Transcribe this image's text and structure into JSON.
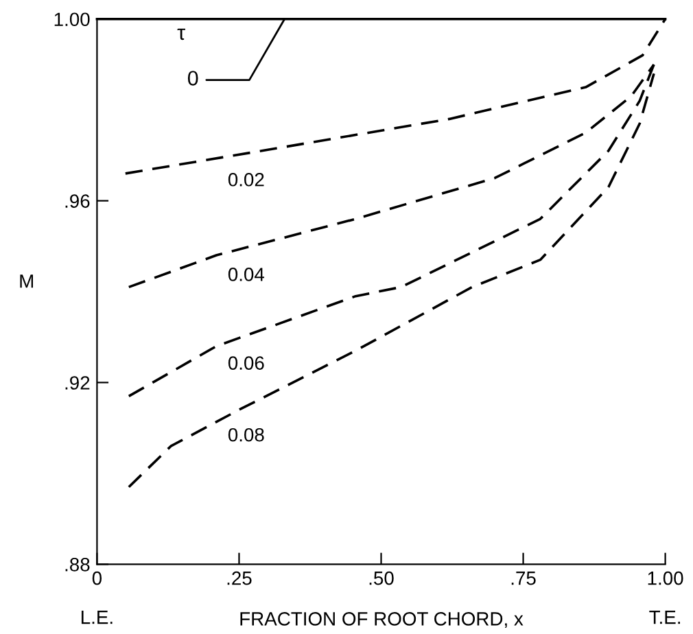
{
  "chart_data": {
    "type": "line",
    "xlabel": "FRACTION OF ROOT CHORD, x",
    "ylabel": "M",
    "legend_title": "τ",
    "xlim": [
      0,
      1.0
    ],
    "ylim": [
      0.88,
      1.0
    ],
    "xticks": [
      0,
      {
        "value": 0.25,
        "label": ".25"
      },
      {
        "value": 0.5,
        "label": ".50"
      },
      {
        "value": 0.75,
        "label": ".75"
      },
      {
        "value": 1.0,
        "label": "1.00"
      }
    ],
    "yticks": [
      {
        "value": 0.88,
        "label": ".88"
      },
      {
        "value": 0.92,
        "label": ".92"
      },
      {
        "value": 0.96,
        "label": ".96"
      },
      {
        "value": 1.0,
        "label": "1.00"
      }
    ],
    "grid": false,
    "legend": false,
    "marker": "none",
    "annotations": [
      "L.E.",
      "T.E."
    ],
    "series": [
      {
        "name": "0",
        "color": "#000000",
        "line_style": "solid",
        "x": [
          0,
          1.0
        ],
        "values": [
          1.0,
          1.0
        ]
      },
      {
        "name": "0.02",
        "color": "#000000",
        "line_style": "dashed",
        "x": [
          0.05,
          0.29,
          0.62,
          0.86,
          0.96,
          1.0
        ],
        "values": [
          0.966,
          0.971,
          0.978,
          0.985,
          0.992,
          1.0
        ]
      },
      {
        "name": "0.04",
        "color": "#000000",
        "line_style": "dashed",
        "x": [
          0.056,
          0.21,
          0.455,
          0.7,
          0.86,
          0.94,
          0.98
        ],
        "values": [
          0.941,
          0.948,
          0.956,
          0.965,
          0.975,
          0.983,
          0.99
        ]
      },
      {
        "name": "0.06",
        "color": "#000000",
        "line_style": "dashed",
        "x": [
          0.056,
          0.21,
          0.455,
          0.535,
          0.78,
          0.9,
          0.955,
          0.98
        ],
        "values": [
          0.917,
          0.928,
          0.939,
          0.941,
          0.956,
          0.971,
          0.982,
          0.99
        ]
      },
      {
        "name": "0.08",
        "color": "#000000",
        "line_style": "dashed",
        "x": [
          0.056,
          0.13,
          0.25,
          0.455,
          0.66,
          0.78,
          0.9,
          0.955,
          0.98
        ],
        "values": [
          0.897,
          0.906,
          0.914,
          0.927,
          0.941,
          0.947,
          0.963,
          0.977,
          0.988
        ]
      }
    ]
  }
}
